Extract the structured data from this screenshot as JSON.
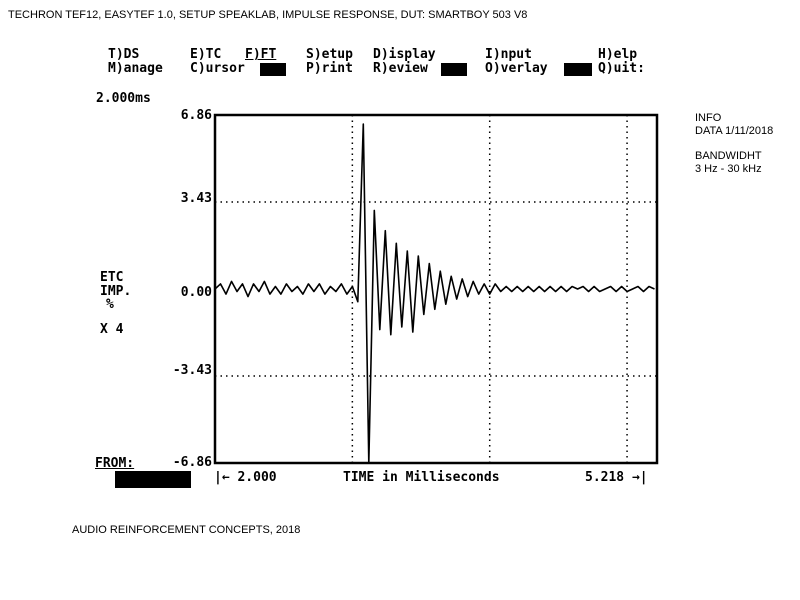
{
  "header": {
    "title": "TECHRON TEF12, EASYTEF 1.0, SETUP SPEAKLAB, IMPULSE RESPONSE, DUT: SMARTBOY 503 V8"
  },
  "menu": {
    "row1": [
      "T)DS",
      "E)TC",
      "F)FT",
      "S)etup",
      "D)isplay",
      "I)nput",
      "H)elp"
    ],
    "row2": [
      "M)anage",
      "C)ursor",
      "P)rint",
      "R)eview",
      "O)verlay",
      "Q)uit:"
    ]
  },
  "info": {
    "title": "INFO",
    "data": "DATA 1/11/2018",
    "bandwidth_label": "BANDWIDHT",
    "bandwidth_value": "3 Hz - 30 kHz"
  },
  "footer": {
    "text": "AUDIO REINFORCEMENT CONCEPTS, 2018"
  },
  "chart_data": {
    "type": "line",
    "time_div": "2.000ms",
    "ylabel": [
      "ETC",
      "IMP.",
      "%"
    ],
    "scale": "X 4",
    "from_label": "FROM:",
    "xlabel": "TIME in Milliseconds",
    "x_start_label": "|← 2.000",
    "x_end_label": "5.218 →|",
    "xlim": [
      2.0,
      5.218
    ],
    "ylim": [
      -6.86,
      6.86
    ],
    "yticks": [
      "6.86",
      "3.43",
      "0.00",
      "-3.43",
      "-6.86"
    ],
    "ytick_values": [
      6.86,
      3.43,
      0,
      -3.43,
      -6.86
    ],
    "x_gridlines": [
      3,
      4,
      5
    ],
    "y_gridlines": [
      3.43,
      -3.43
    ],
    "grid": "dotted",
    "line_color": "#000000",
    "x": [
      2.0,
      2.04,
      2.08,
      2.12,
      2.16,
      2.2,
      2.24,
      2.28,
      2.32,
      2.36,
      2.4,
      2.44,
      2.48,
      2.52,
      2.56,
      2.6,
      2.64,
      2.68,
      2.72,
      2.76,
      2.8,
      2.84,
      2.88,
      2.92,
      2.96,
      3.0,
      3.04,
      3.08,
      3.12,
      3.16,
      3.2,
      3.24,
      3.28,
      3.32,
      3.36,
      3.4,
      3.44,
      3.48,
      3.52,
      3.56,
      3.6,
      3.64,
      3.68,
      3.72,
      3.76,
      3.8,
      3.84,
      3.88,
      3.92,
      3.96,
      4.0,
      4.04,
      4.08,
      4.12,
      4.16,
      4.2,
      4.24,
      4.28,
      4.32,
      4.36,
      4.4,
      4.44,
      4.48,
      4.52,
      4.56,
      4.6,
      4.64,
      4.68,
      4.72,
      4.76,
      4.8,
      4.84,
      4.88,
      4.92,
      4.96,
      5.0,
      5.04,
      5.08,
      5.12,
      5.16,
      5.2
    ],
    "y": [
      0,
      0.2,
      -0.2,
      0.3,
      -0.1,
      0.2,
      -0.3,
      0.2,
      -0.1,
      0.3,
      -0.2,
      0.1,
      -0.2,
      0.2,
      -0.1,
      0.1,
      -0.2,
      0.2,
      -0.1,
      0.2,
      -0.2,
      0.1,
      -0.1,
      0.2,
      -0.2,
      0.1,
      -0.5,
      6.5,
      -6.86,
      3.1,
      -1.6,
      2.3,
      -1.8,
      1.8,
      -1.5,
      1.5,
      -1.7,
      1.3,
      -1.0,
      1.0,
      -0.8,
      0.7,
      -0.6,
      0.5,
      -0.4,
      0.4,
      -0.3,
      0.3,
      -0.2,
      0.2,
      -0.2,
      0.2,
      -0.1,
      0.1,
      -0.1,
      0.1,
      -0.1,
      0.1,
      -0.1,
      0.1,
      -0.1,
      0.1,
      -0.1,
      0.1,
      -0.1,
      0.1,
      0,
      0.1,
      -0.1,
      0.1,
      -0.1,
      0,
      0.1,
      -0.1,
      0.1,
      -0.1,
      0,
      0.1,
      -0.1,
      0.1,
      0
    ]
  }
}
